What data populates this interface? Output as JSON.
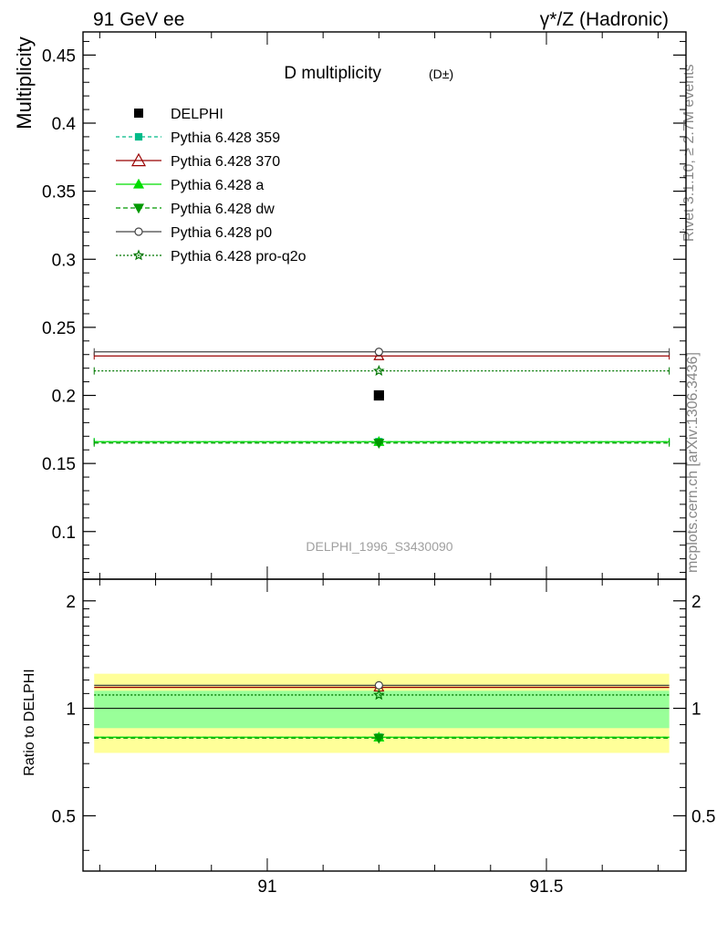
{
  "header": {
    "left": "91 GeV ee",
    "right": "γ*/Z (Hadronic)"
  },
  "side_labels": {
    "rivet": "Rivet 3.1.10, ≥ 2.7M events",
    "mcplots": "mcplots.cern.ch [arXiv:1306.3436]"
  },
  "watermark": "DELPHI_1996_S3430090",
  "chart_data": {
    "type": "scatter",
    "title": "D multiplicity",
    "title_suffix": "(D±)",
    "xlabel": "",
    "ylabel": "Multiplicity",
    "ratio_ylabel": "Ratio to DELPHI",
    "xlim": [
      90.67,
      91.75
    ],
    "ylim": [
      0.065,
      0.467
    ],
    "ratio_ylim": [
      0.35,
      2.3
    ],
    "x_ticks": [
      "91",
      "91.5"
    ],
    "y_ticks": [
      "0.1",
      "0.15",
      "0.2",
      "0.25",
      "0.3",
      "0.35",
      "0.4",
      "0.45"
    ],
    "ratio_ticks": [
      "0.5",
      "1",
      "2"
    ],
    "legend_position": "top-left",
    "data": {
      "name": "DELPHI",
      "x": 91.2,
      "y": 0.2,
      "x_range": [
        90.69,
        91.72
      ],
      "band_inner": [
        0.88,
        1.12
      ],
      "band_outer": [
        0.75,
        1.25
      ],
      "color": "#000000"
    },
    "series": [
      {
        "name": "Pythia 6.428 359",
        "y": 0.166,
        "ratio": 0.83,
        "color": "#00bb88",
        "dash": "4,3",
        "marker": "square-small"
      },
      {
        "name": "Pythia 6.428 370",
        "y": 0.229,
        "ratio": 1.145,
        "color": "#990000",
        "dash": "",
        "marker": "triangle-open"
      },
      {
        "name": "Pythia 6.428 a",
        "y": 0.166,
        "ratio": 0.83,
        "color": "#00dd00",
        "dash": "",
        "marker": "triangle"
      },
      {
        "name": "Pythia 6.428 dw",
        "y": 0.165,
        "ratio": 0.825,
        "color": "#009900",
        "dash": "5,3",
        "marker": "triangle-down"
      },
      {
        "name": "Pythia 6.428 p0",
        "y": 0.232,
        "ratio": 1.16,
        "color": "#444444",
        "dash": "",
        "marker": "circle-open"
      },
      {
        "name": "Pythia 6.428 pro-q2o",
        "y": 0.218,
        "ratio": 1.09,
        "color": "#007700",
        "dash": "2,2",
        "marker": "star-open"
      }
    ]
  }
}
